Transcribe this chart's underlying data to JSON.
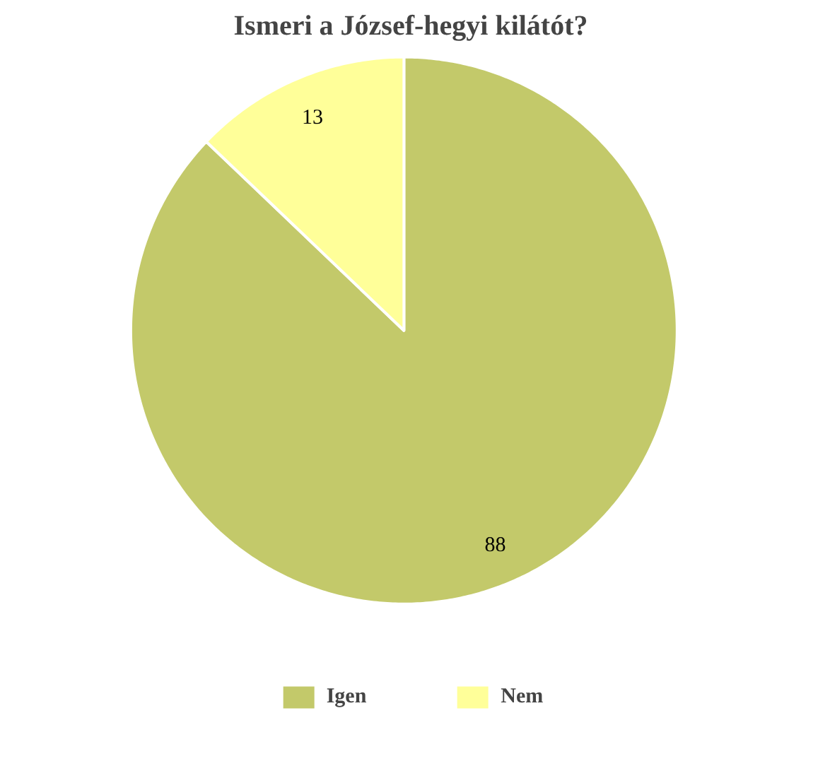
{
  "chart_data": {
    "type": "pie",
    "title": "Ismeri a József-hegyi kilátót?",
    "categories": [
      "Igen",
      "Nem"
    ],
    "values": [
      88,
      13
    ],
    "colors": [
      "#c3c96a",
      "#ffff99"
    ],
    "data_labels": true,
    "legend": "bottom"
  }
}
